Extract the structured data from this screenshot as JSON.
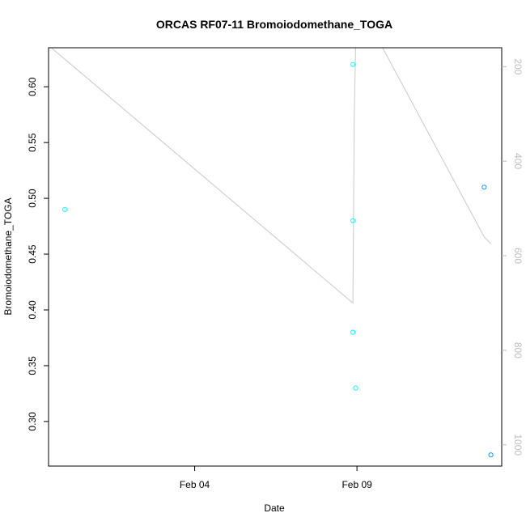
{
  "chart_data": {
    "type": "scatter",
    "title": "ORCAS RF07-11 Bromoiodomethane_TOGA",
    "xlabel": "Date",
    "ylabel": "Bromoiodomethane_TOGA",
    "x_ticks": [
      {
        "date": "2016-02-04",
        "label": "Feb 04"
      },
      {
        "date": "2016-02-09",
        "label": "Feb 09"
      }
    ],
    "y_ticks": [
      0.3,
      0.35,
      0.4,
      0.45,
      0.5,
      0.55,
      0.6
    ],
    "y_tick_labels": [
      "0.30",
      "0.35",
      "0.40",
      "0.45",
      "0.50",
      "0.55",
      "0.60"
    ],
    "y2_ticks": [
      200,
      400,
      600,
      800,
      1000
    ],
    "y2_tick_labels": [
      "200",
      "400",
      "600",
      "800",
      "1000"
    ],
    "xlim": [
      "2016-01-30T12:00",
      "2016-02-13T11:00"
    ],
    "ylim": [
      0.26,
      0.635
    ],
    "y2lim": [
      1045,
      160
    ],
    "grid": false,
    "series": [
      {
        "color": "#00ffff",
        "marker": "open-circle",
        "points": [
          {
            "x": "2016-01-31T00:00",
            "y": 0.49
          },
          {
            "x": "2016-02-08T21:00",
            "y": 0.62
          },
          {
            "x": "2016-02-08T21:00",
            "y": 0.48
          },
          {
            "x": "2016-02-08T21:00",
            "y": 0.38
          },
          {
            "x": "2016-02-08T23:00",
            "y": 0.33
          }
        ]
      },
      {
        "color": "#1e90ff",
        "marker": "open-circle",
        "points": [
          {
            "x": "2016-02-12T22:00",
            "y": 0.51
          },
          {
            "x": "2016-02-13T03:00",
            "y": 0.27
          }
        ]
      }
    ],
    "secondary_line": {
      "color": "#c8c8c8",
      "axis": "right",
      "segments": [
        [
          {
            "x": "2016-01-30T12:00",
            "y2": 155
          },
          {
            "x": "2016-02-08T21:00",
            "y2": 700
          },
          {
            "x": "2016-02-08T22:00",
            "y2": 300
          },
          {
            "x": "2016-02-08T23:00",
            "y2": 155
          }
        ],
        [
          {
            "x": "2016-02-09T18:00",
            "y2": 155
          },
          {
            "x": "2016-02-12T22:00",
            "y2": 560
          },
          {
            "x": "2016-02-13T03:00",
            "y2": 575
          }
        ]
      ]
    }
  }
}
